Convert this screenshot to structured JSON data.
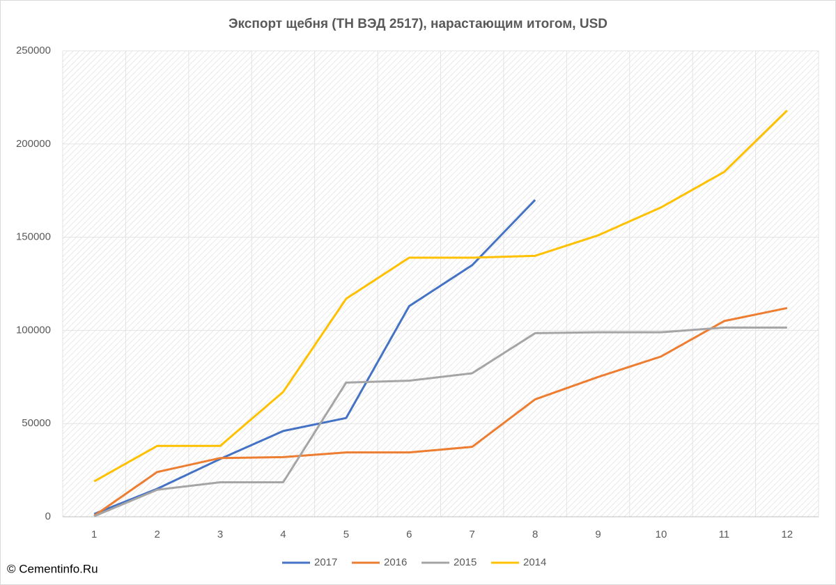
{
  "chart_data": {
    "type": "line",
    "title": "Экспорт щебня (ТН ВЭД 2517), нарастающим итогом, USD",
    "credit": "© Cementinfo.Ru",
    "categories": [
      "1",
      "2",
      "3",
      "4",
      "5",
      "6",
      "7",
      "8",
      "9",
      "10",
      "11",
      "12"
    ],
    "series": [
      {
        "name": "2017",
        "color": "#4472c4",
        "values": [
          1500,
          15000,
          31000,
          46000,
          53000,
          113000,
          135000,
          170000,
          null,
          null,
          null,
          null
        ]
      },
      {
        "name": "2016",
        "color": "#ed7d31",
        "values": [
          500,
          24000,
          31500,
          32000,
          34500,
          34500,
          37500,
          63000,
          75000,
          86000,
          105000,
          112000
        ]
      },
      {
        "name": "2015",
        "color": "#a5a5a5",
        "values": [
          300,
          14500,
          18500,
          18500,
          72000,
          73000,
          77000,
          98500,
          99000,
          99000,
          101500,
          101500
        ]
      },
      {
        "name": "2014",
        "color": "#ffc000",
        "values": [
          19000,
          38000,
          38000,
          67000,
          117000,
          139000,
          139000,
          140000,
          151000,
          166000,
          185000,
          218000
        ]
      }
    ],
    "ylim": [
      0,
      250000
    ],
    "yticks": [
      0,
      50000,
      100000,
      150000,
      200000,
      250000
    ],
    "grid": true,
    "legend": "bottom"
  }
}
